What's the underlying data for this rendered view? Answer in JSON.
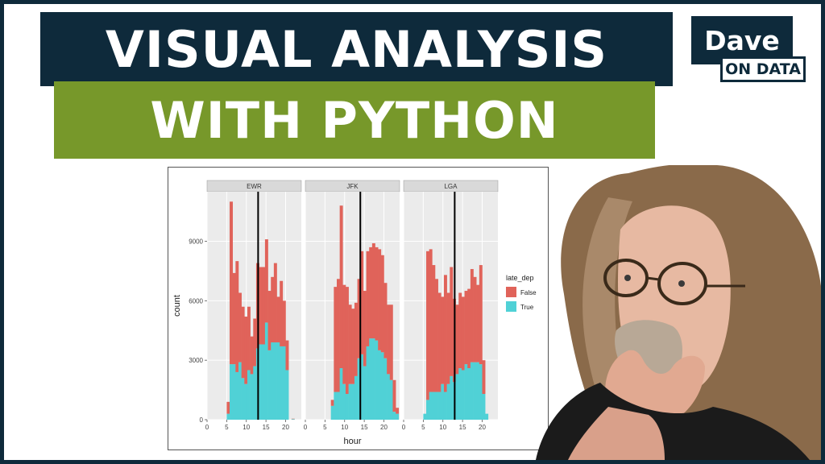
{
  "title": {
    "line1": "VISUAL ANALYSIS",
    "line2": "WITH PYTHON"
  },
  "logo": {
    "top": "Dave",
    "bottom": "ON DATA"
  },
  "colors": {
    "navy": "#0e2a3b",
    "green": "#77982a",
    "false_color": "#e0635a",
    "true_color": "#50d1d6"
  },
  "chart_data": {
    "type": "bar",
    "subtype": "faceted stacked histogram",
    "xlabel": "hour",
    "ylabel": "count",
    "ylim": [
      0,
      11500
    ],
    "xlim": [
      0,
      24
    ],
    "x_ticks": [
      "0",
      "5",
      "10",
      "15",
      "20"
    ],
    "x_tick_values": [
      0,
      5,
      10,
      15,
      20
    ],
    "y_ticks": [
      "0",
      "3000",
      "6000",
      "9000"
    ],
    "y_tick_values": [
      0,
      3000,
      6000,
      9000
    ],
    "legend": {
      "title": "late_dep",
      "entries": [
        "False",
        "True"
      ],
      "position": "right"
    },
    "facets": [
      {
        "name": "EWR",
        "vline": 13,
        "bins": [
          5,
          5.75,
          6.5,
          7.25,
          8,
          8.75,
          9.5,
          10.25,
          11,
          11.75,
          12.5,
          13.25,
          14,
          14.75,
          15.5,
          16.25,
          17,
          17.75,
          18.5,
          19.25,
          20,
          20.75,
          21.5
        ],
        "false": [
          600,
          8200,
          4600,
          5600,
          3500,
          3600,
          3400,
          3200,
          1900,
          2400,
          4300,
          3900,
          3900,
          4200,
          3000,
          3300,
          4000,
          2300,
          3300,
          2300,
          1500,
          0,
          20
        ],
        "true": [
          300,
          2800,
          2800,
          2400,
          2900,
          2100,
          1800,
          2500,
          2300,
          2700,
          3600,
          3800,
          3800,
          4900,
          3500,
          3900,
          3900,
          3900,
          3700,
          3700,
          2500,
          0,
          30
        ]
      },
      {
        "name": "JFK",
        "vline": 14,
        "bins": [
          5,
          5.75,
          6.5,
          7.25,
          8,
          8.75,
          9.5,
          10.25,
          11,
          11.75,
          12.5,
          13.25,
          14,
          14.75,
          15.5,
          16.25,
          17,
          17.75,
          18.5,
          19.25,
          20,
          20.75,
          21.5,
          22.25,
          23
        ],
        "false": [
          0,
          0,
          300,
          5300,
          5700,
          8200,
          5000,
          5400,
          4000,
          3800,
          3700,
          4000,
          5200,
          3800,
          4800,
          4600,
          4800,
          4700,
          5100,
          4900,
          3800,
          3500,
          3800,
          1600,
          300
        ],
        "true": [
          0,
          0,
          700,
          1400,
          1400,
          2600,
          1800,
          1300,
          1800,
          1800,
          2200,
          3100,
          3300,
          2700,
          3700,
          4100,
          4100,
          4000,
          3500,
          3400,
          3100,
          2300,
          2000,
          400,
          300
        ]
      },
      {
        "name": "LGA",
        "vline": 13,
        "bins": [
          5,
          5.75,
          6.5,
          7.25,
          8,
          8.75,
          9.5,
          10.25,
          11,
          11.75,
          12.5,
          13.25,
          14,
          14.75,
          15.5,
          16.25,
          17,
          17.75,
          18.5,
          19.25,
          20,
          20.75
        ],
        "false": [
          0,
          7500,
          7200,
          6400,
          5700,
          5000,
          4400,
          5900,
          4600,
          5500,
          4200,
          3500,
          3800,
          3700,
          3700,
          4000,
          4700,
          4300,
          3900,
          5000,
          1700,
          0
        ],
        "true": [
          300,
          1000,
          1400,
          1400,
          1400,
          1400,
          1800,
          1400,
          1800,
          2200,
          1900,
          2300,
          2600,
          2500,
          2800,
          2600,
          2900,
          2900,
          2900,
          2800,
          1300,
          300
        ]
      }
    ]
  }
}
